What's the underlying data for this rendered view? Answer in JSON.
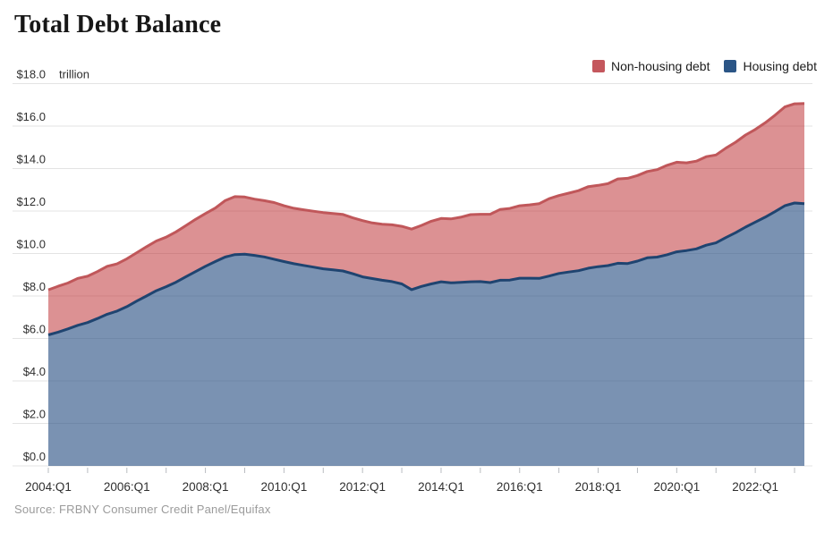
{
  "page": {
    "background": "#ffffff"
  },
  "header": {
    "title": "Total Debt Balance"
  },
  "legend": {
    "items": [
      {
        "label": "Non-housing debt",
        "color": "#C4575D"
      },
      {
        "label": "Housing debt",
        "color": "#2B5586"
      }
    ]
  },
  "source_note": "Source: FRBNY Consumer Credit Panel/Equifax",
  "chart_data": {
    "type": "area",
    "stacked": true,
    "title": "Total Debt Balance",
    "ylabel": "",
    "xlabel": "",
    "y_unit_label": "trillion",
    "y_tick_prefix": "$",
    "ylim": [
      0,
      18
    ],
    "y_tick_step": 2,
    "y_tick_labels": [
      "$0.0",
      "$2.0",
      "$4.0",
      "$6.0",
      "$8.0",
      "$10.0",
      "$12.0",
      "$14.0",
      "$16.0",
      "$18.0"
    ],
    "grid": "horizontal",
    "legend_position": "top-right",
    "x_tick_labels": [
      "2004:Q1",
      "2006:Q1",
      "2008:Q1",
      "2010:Q1",
      "2012:Q1",
      "2014:Q1",
      "2016:Q1",
      "2018:Q1",
      "2020:Q1",
      "2022:Q1"
    ],
    "x": [
      "2004:Q1",
      "2004:Q2",
      "2004:Q3",
      "2004:Q4",
      "2005:Q1",
      "2005:Q2",
      "2005:Q3",
      "2005:Q4",
      "2006:Q1",
      "2006:Q2",
      "2006:Q3",
      "2006:Q4",
      "2007:Q1",
      "2007:Q2",
      "2007:Q3",
      "2007:Q4",
      "2008:Q1",
      "2008:Q2",
      "2008:Q3",
      "2008:Q4",
      "2009:Q1",
      "2009:Q2",
      "2009:Q3",
      "2009:Q4",
      "2010:Q1",
      "2010:Q2",
      "2010:Q3",
      "2010:Q4",
      "2011:Q1",
      "2011:Q2",
      "2011:Q3",
      "2011:Q4",
      "2012:Q1",
      "2012:Q2",
      "2012:Q3",
      "2012:Q4",
      "2013:Q1",
      "2013:Q2",
      "2013:Q3",
      "2013:Q4",
      "2014:Q1",
      "2014:Q2",
      "2014:Q3",
      "2014:Q4",
      "2015:Q1",
      "2015:Q2",
      "2015:Q3",
      "2015:Q4",
      "2016:Q1",
      "2016:Q2",
      "2016:Q3",
      "2016:Q4",
      "2017:Q1",
      "2017:Q2",
      "2017:Q3",
      "2017:Q4",
      "2018:Q1",
      "2018:Q2",
      "2018:Q3",
      "2018:Q4",
      "2019:Q1",
      "2019:Q2",
      "2019:Q3",
      "2019:Q4",
      "2020:Q1",
      "2020:Q2",
      "2020:Q3",
      "2020:Q4",
      "2021:Q1",
      "2021:Q2",
      "2021:Q3",
      "2021:Q4",
      "2022:Q1",
      "2022:Q2",
      "2022:Q3",
      "2022:Q4",
      "2023:Q1",
      "2023:Q2"
    ],
    "series": [
      {
        "name": "Housing debt",
        "stack_order": 0,
        "line_color": "#1F4470",
        "fill_rgba": [
          47,
          85,
          134,
          0.64
        ],
        "values": [
          6.17,
          6.3,
          6.45,
          6.62,
          6.75,
          6.94,
          7.14,
          7.29,
          7.5,
          7.76,
          8.0,
          8.25,
          8.44,
          8.65,
          8.9,
          9.15,
          9.4,
          9.62,
          9.83,
          9.95,
          9.97,
          9.91,
          9.84,
          9.73,
          9.62,
          9.52,
          9.44,
          9.36,
          9.28,
          9.23,
          9.18,
          9.05,
          8.9,
          8.82,
          8.74,
          8.68,
          8.57,
          8.3,
          8.45,
          8.57,
          8.67,
          8.62,
          8.64,
          8.67,
          8.68,
          8.63,
          8.74,
          8.75,
          8.84,
          8.84,
          8.83,
          8.94,
          9.06,
          9.13,
          9.19,
          9.31,
          9.38,
          9.43,
          9.54,
          9.53,
          9.64,
          9.8,
          9.83,
          9.94,
          10.08,
          10.14,
          10.22,
          10.39,
          10.5,
          10.75,
          10.98,
          11.24,
          11.48,
          11.71,
          11.97,
          12.25,
          12.38,
          12.35
        ]
      },
      {
        "name": "Non-housing debt",
        "stack_order": 1,
        "line_color": "#C0575A",
        "fill_rgba": [
          191,
          55,
          59,
          0.55
        ],
        "values": [
          2.12,
          2.16,
          2.16,
          2.21,
          2.18,
          2.21,
          2.26,
          2.22,
          2.25,
          2.28,
          2.32,
          2.34,
          2.33,
          2.37,
          2.41,
          2.46,
          2.48,
          2.52,
          2.66,
          2.73,
          2.69,
          2.65,
          2.65,
          2.67,
          2.63,
          2.61,
          2.62,
          2.63,
          2.65,
          2.65,
          2.66,
          2.63,
          2.65,
          2.62,
          2.64,
          2.67,
          2.71,
          2.85,
          2.87,
          2.95,
          2.98,
          3.01,
          3.07,
          3.16,
          3.17,
          3.22,
          3.33,
          3.37,
          3.41,
          3.45,
          3.52,
          3.64,
          3.67,
          3.71,
          3.77,
          3.84,
          3.83,
          3.86,
          3.97,
          4.01,
          4.03,
          4.06,
          4.12,
          4.21,
          4.22,
          4.13,
          4.13,
          4.17,
          4.14,
          4.21,
          4.26,
          4.34,
          4.36,
          4.44,
          4.54,
          4.65,
          4.67,
          4.71
        ]
      }
    ]
  }
}
